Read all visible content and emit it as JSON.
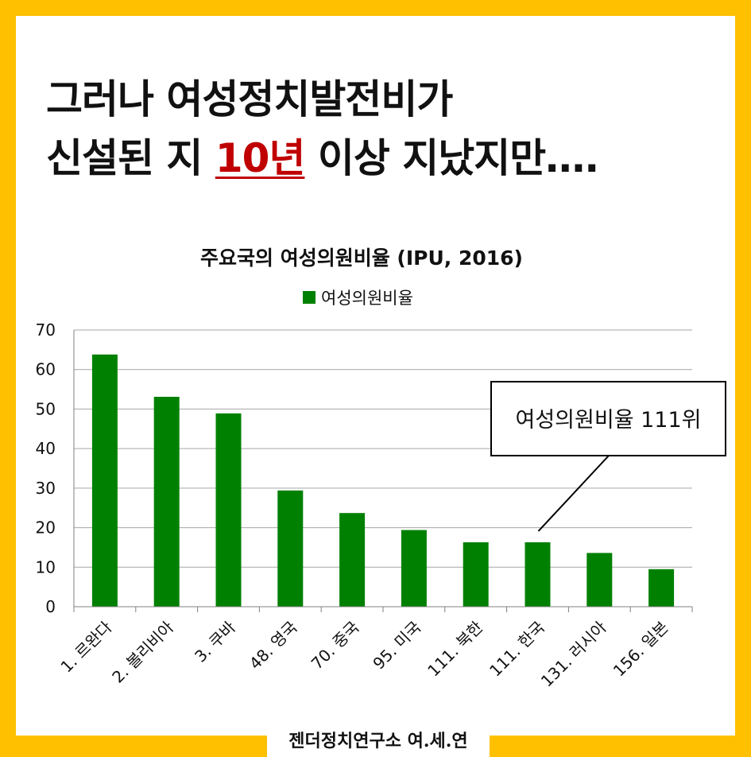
{
  "headline": {
    "line1": "그러나 여성정치발전비가",
    "line2_pre": "신설된 지 ",
    "line2_highlight": "10년",
    "line2_post": " 이상 지났지만….",
    "highlight_color": "#C00000"
  },
  "chart_data": {
    "type": "bar",
    "title": "주요국의 여성의원비율 (IPU, 2016)",
    "xlabel": "",
    "ylabel": "",
    "ylim": [
      0,
      70
    ],
    "yticks": [
      0,
      10,
      20,
      30,
      40,
      50,
      60,
      70
    ],
    "grid": true,
    "legend_position": "top",
    "bar_color": "#008000",
    "categories": [
      "1. 르완다",
      "2. 볼리비아",
      "3. 쿠바",
      "48. 영국",
      "70. 중국",
      "95. 미국",
      "111. 북한",
      "111. 한국",
      "131. 러시아",
      "156. 일본"
    ],
    "series": [
      {
        "name": "여성의원비율",
        "values": [
          63.8,
          53.1,
          48.9,
          29.4,
          23.7,
          19.4,
          16.3,
          16.3,
          13.6,
          9.5
        ]
      }
    ],
    "annotation": {
      "text": "여성의원비율 111위",
      "target_index": 7
    }
  },
  "footer": {
    "text": "젠더정치연구소 여.세.연"
  },
  "colors": {
    "border": "#FFC000",
    "background": "#FFFFFF",
    "grid": "#A6A6A6"
  }
}
